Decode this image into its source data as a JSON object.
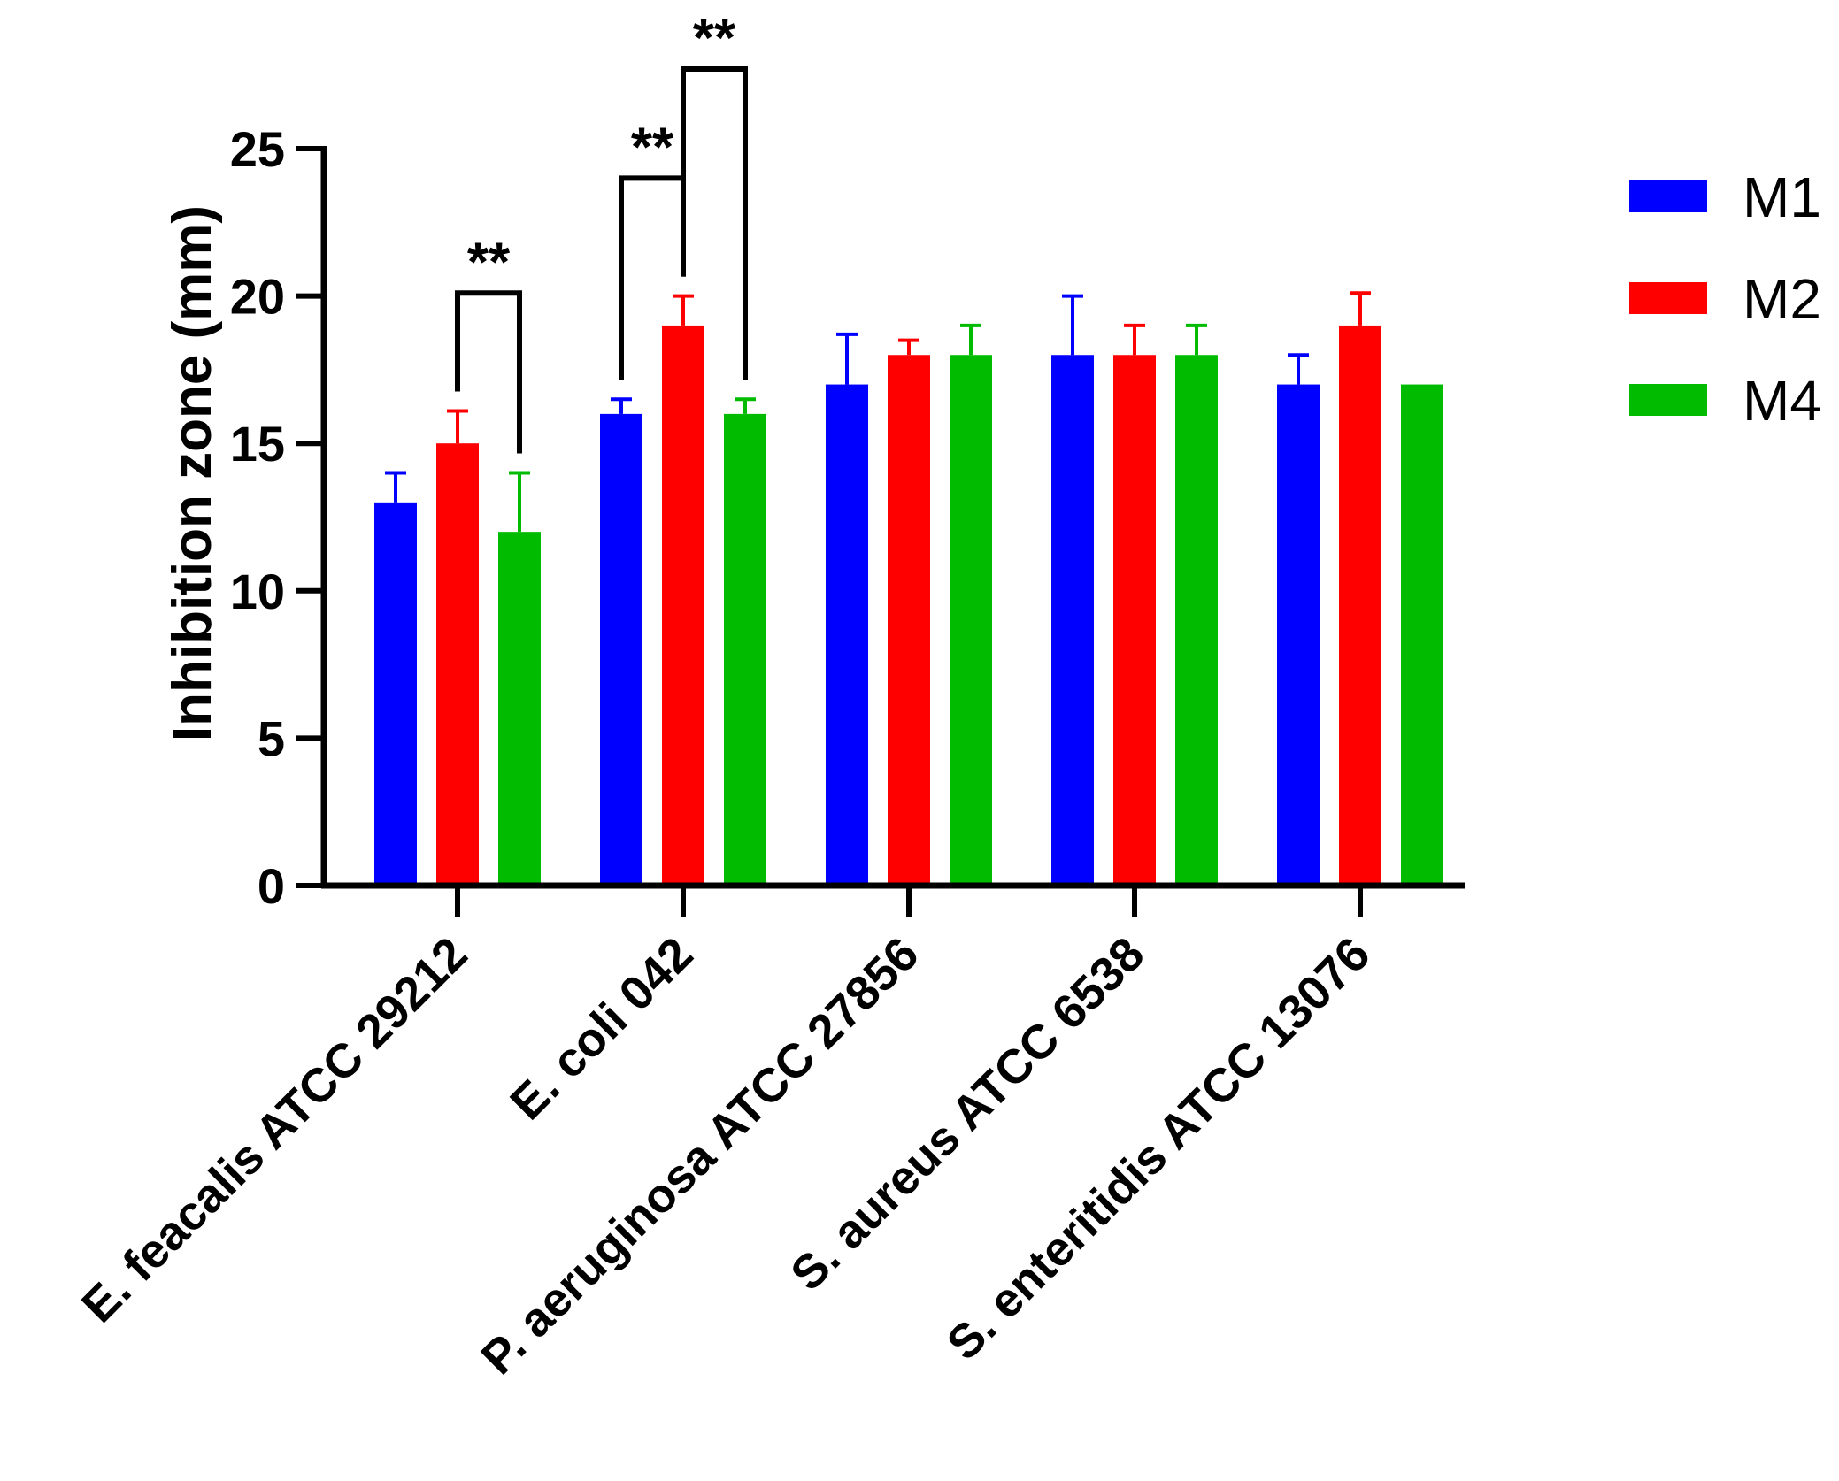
{
  "chart_data": {
    "type": "bar",
    "title": "",
    "xlabel": "",
    "ylabel": "Inhibition zone (mm)",
    "ylim": [
      0,
      25
    ],
    "yticks": [
      "0",
      "5",
      "10",
      "15",
      "20",
      "25"
    ],
    "categories": [
      "E. feacalis ATCC 29212",
      "E. coli 042",
      "P. aeruginosa ATCC 27856",
      "S. aureus ATCC 6538",
      "S. enteritidis ATCC 13076"
    ],
    "series": [
      {
        "name": "M1",
        "color": "#0000ff",
        "values": [
          13,
          16,
          17,
          18,
          17
        ],
        "errors": [
          1,
          0.5,
          1.7,
          2,
          1
        ]
      },
      {
        "name": "M2",
        "color": "#ff0000",
        "values": [
          15,
          19,
          18,
          18,
          19
        ],
        "errors": [
          1.1,
          1,
          0.5,
          1,
          1.1
        ]
      },
      {
        "name": "M4",
        "color": "#00bb00",
        "values": [
          12,
          16,
          18,
          18,
          17
        ],
        "errors": [
          2,
          0.5,
          1,
          1,
          0
        ]
      }
    ],
    "significance": [
      {
        "category": 0,
        "from_series": 1,
        "to_series": 2,
        "label": "**"
      },
      {
        "category": 1,
        "from_series": 0,
        "to_series": 1,
        "label": "**"
      },
      {
        "category": 1,
        "from_series": 1,
        "to_series": 2,
        "label": "**"
      }
    ],
    "legend": {
      "position": "top-right"
    },
    "grid": false
  }
}
